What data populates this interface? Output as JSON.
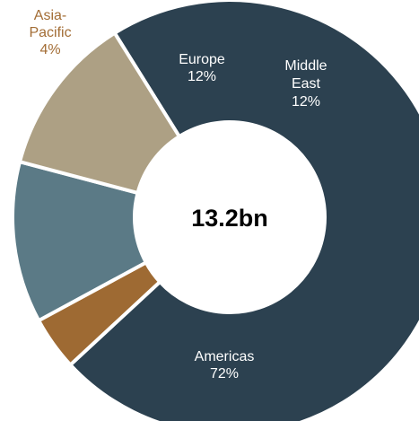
{
  "chart_data": {
    "type": "pie",
    "style": "donut",
    "center_label": "13.2bn",
    "slices": [
      {
        "label_lines": [
          "Americas"
        ],
        "value_label": "72%",
        "value": 72,
        "color": "#2c4150",
        "label_color": "#ffffff"
      },
      {
        "label_lines": [
          "Asia-",
          "Pacific"
        ],
        "value_label": "4%",
        "value": 4,
        "color": "#9e6a33",
        "label_color": "#a36d35"
      },
      {
        "label_lines": [
          "Europe"
        ],
        "value_label": "12%",
        "value": 12,
        "color": "#5b7a86",
        "label_color": "#ffffff"
      },
      {
        "label_lines": [
          "Middle",
          "East"
        ],
        "value_label": "12%",
        "value": 12,
        "color": "#ada084",
        "label_color": "#ffffff"
      }
    ],
    "legend": "none"
  }
}
